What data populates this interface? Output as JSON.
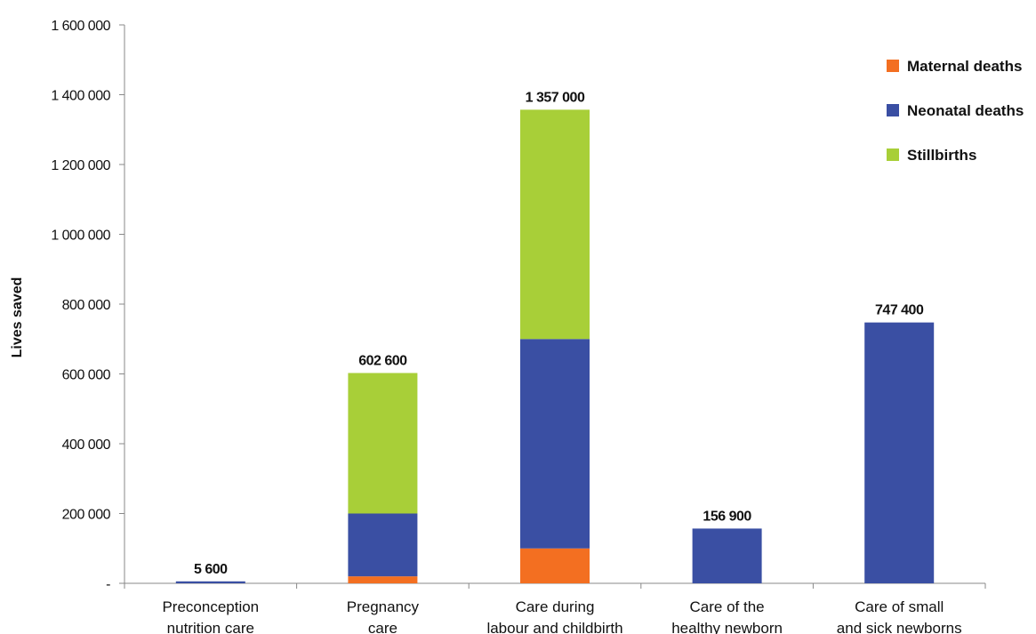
{
  "chart_data": {
    "type": "bar",
    "stacked": true,
    "title": "",
    "xlabel": "",
    "ylabel": "Lives saved",
    "ylim": [
      0,
      1600000
    ],
    "yticks": [
      0,
      200000,
      400000,
      600000,
      800000,
      1000000,
      1200000,
      1400000,
      1600000
    ],
    "ytick_labels": [
      "-",
      "200 000",
      "400 000",
      "600 000",
      "800 000",
      "1 000 000",
      "1 200 000",
      "1 400 000",
      "1 600 000"
    ],
    "grid": false,
    "legend_position": "top-right",
    "categories": [
      [
        "Preconception",
        "nutrition care"
      ],
      [
        "Pregnancy",
        "care"
      ],
      [
        "Care during",
        "labour and childbirth"
      ],
      [
        "Care of the",
        "healthy newborn"
      ],
      [
        "Care of small",
        "and sick newborns"
      ]
    ],
    "series": [
      {
        "name": "Maternal deaths",
        "color": "#f36f21",
        "values": [
          0,
          20000,
          100000,
          0,
          0
        ]
      },
      {
        "name": "Neonatal deaths",
        "color": "#3a4fa3",
        "values": [
          5600,
          180000,
          600000,
          156900,
          747400
        ]
      },
      {
        "name": "Stillbirths",
        "color": "#a8cf38",
        "values": [
          0,
          402600,
          657000,
          0,
          0
        ]
      }
    ],
    "totals": [
      "5 600",
      "602 600",
      "1 357 000",
      "156 900",
      "747 400"
    ],
    "total_values": [
      5600,
      602600,
      1357000,
      156900,
      747400
    ]
  }
}
